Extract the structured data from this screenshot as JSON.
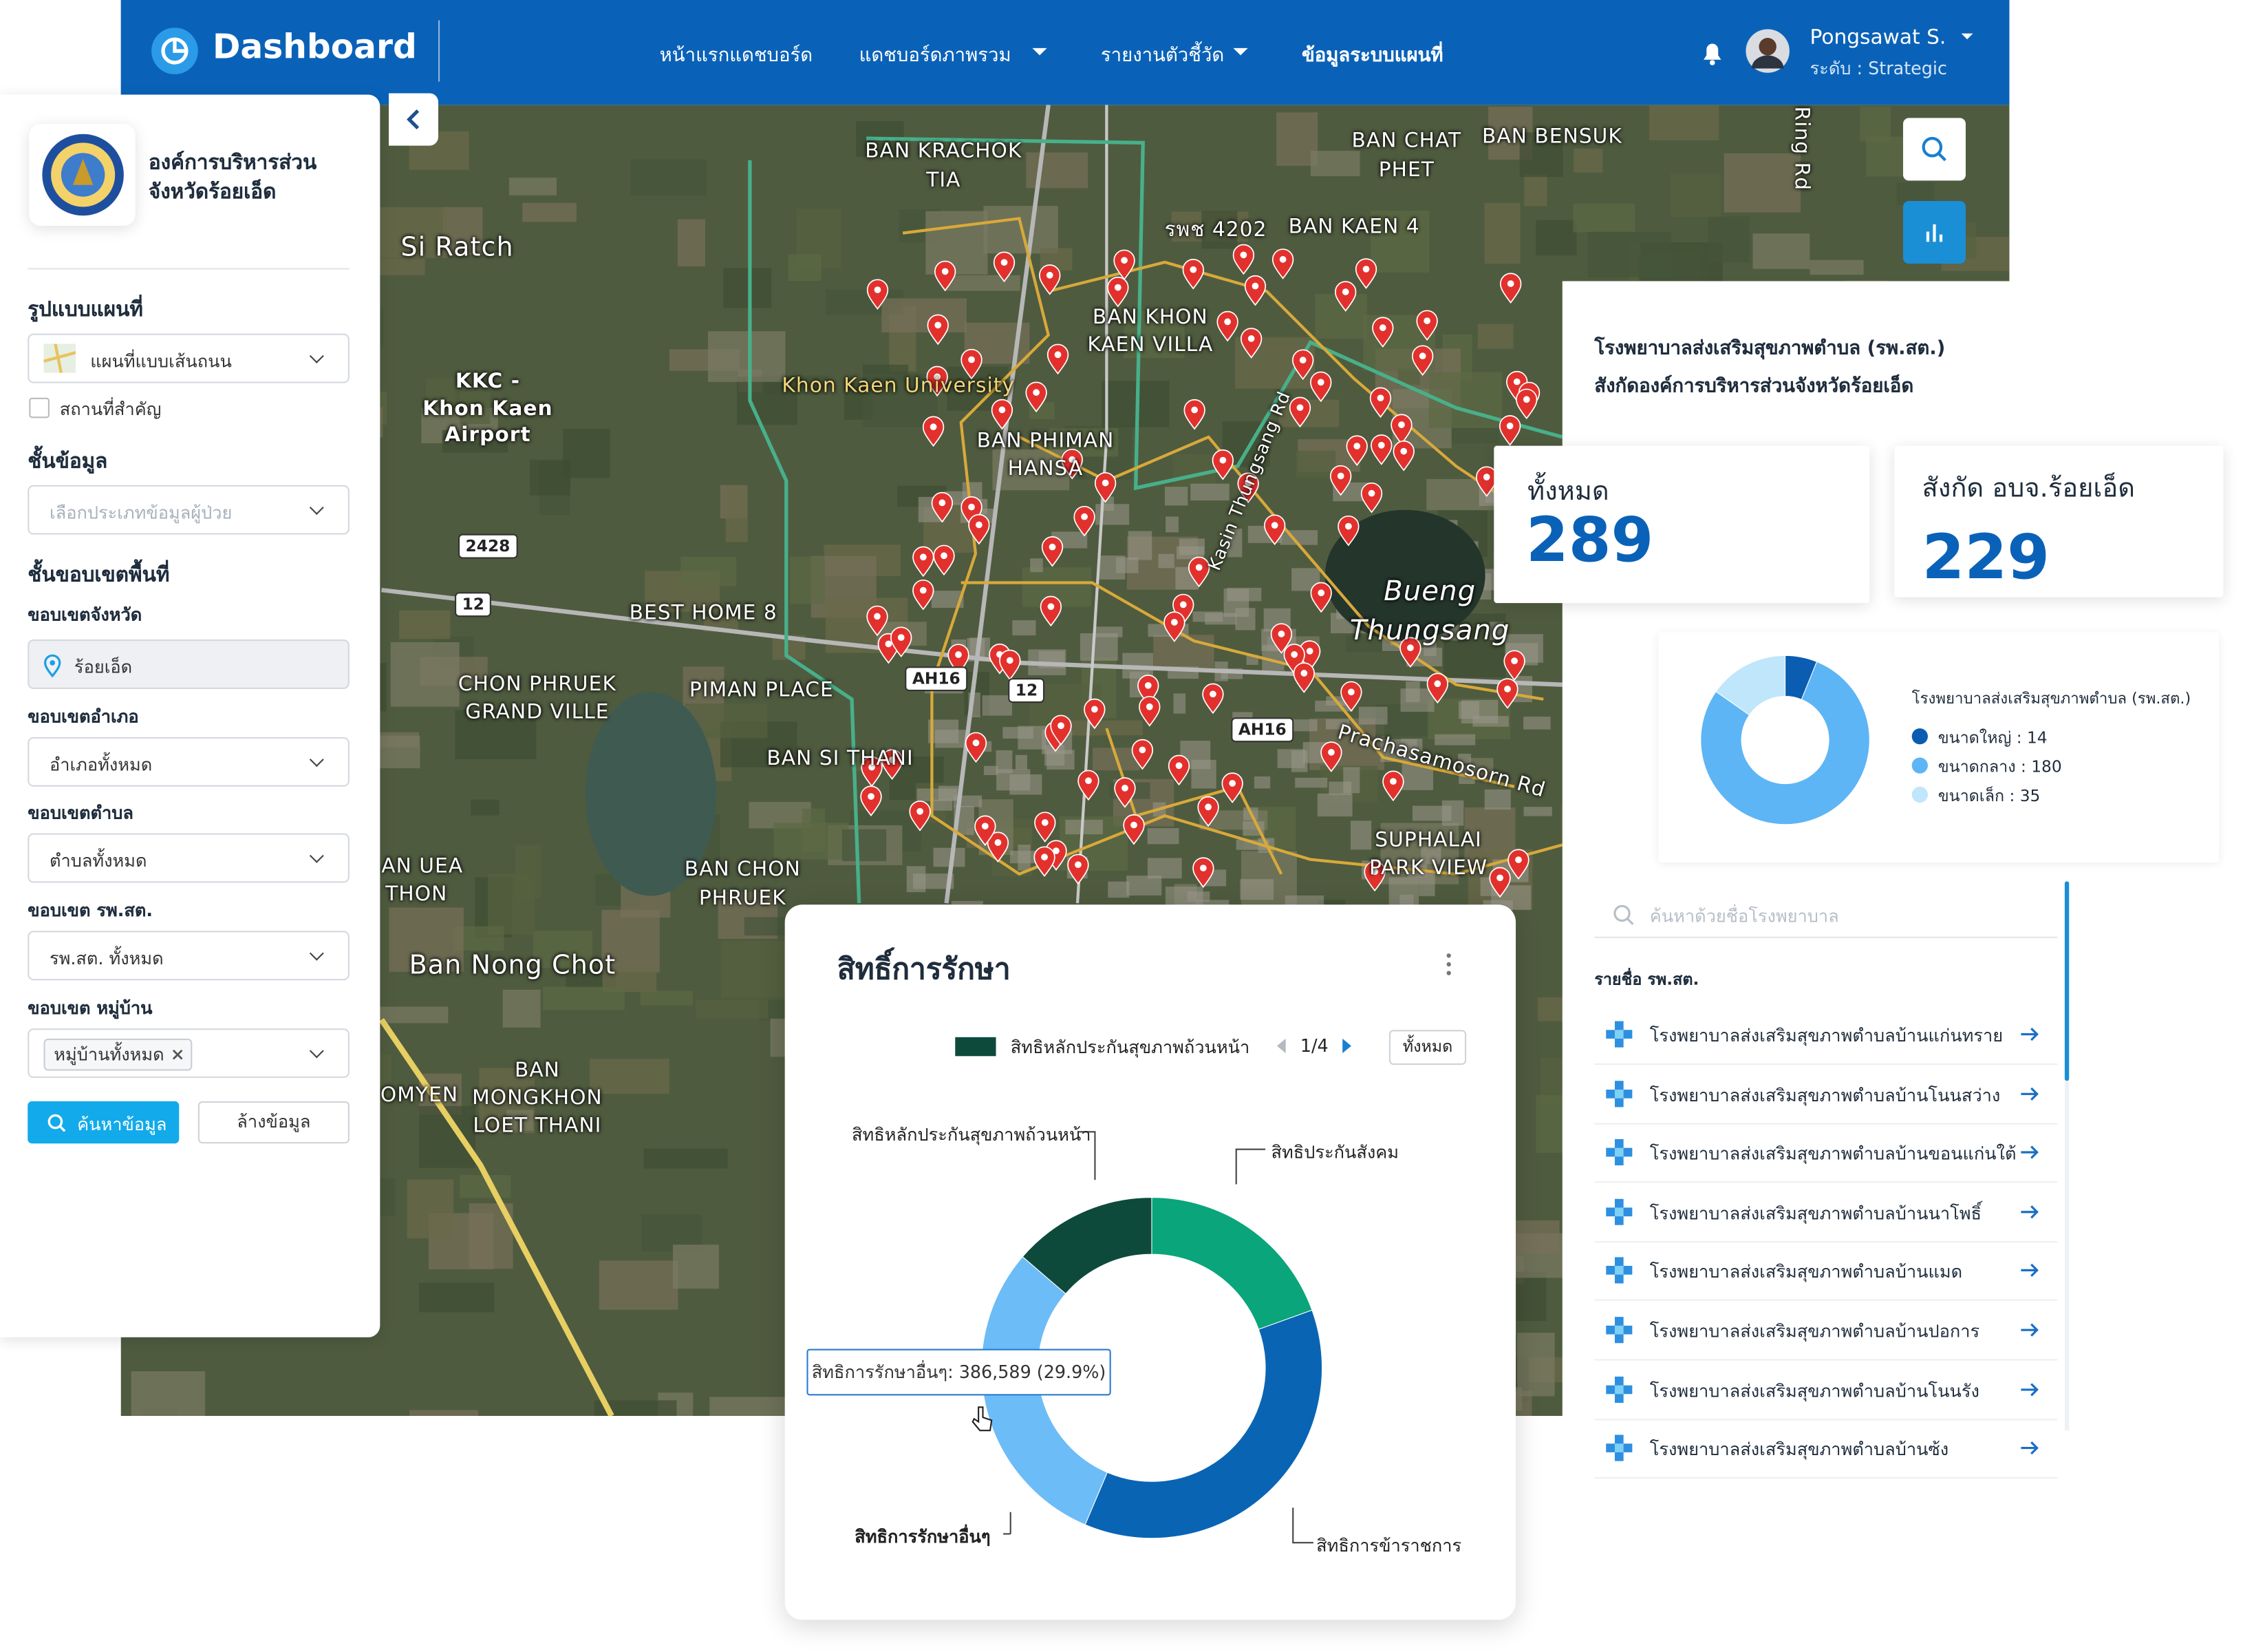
{
  "nav": {
    "brand": "Dashboard",
    "menu": [
      "หน้าแรกแดชบอร์ด",
      "แดชบอร์ดภาพรวม",
      "รายงานตัวชี้วัด",
      "ข้อมูลระบบแผนที่"
    ],
    "user": {
      "name": "Pongsawat S.",
      "role": "ระดับ : Strategic"
    }
  },
  "sidebar": {
    "org": [
      "องค์การบริหารส่วน",
      "จังหวัดร้อยเอ็ด"
    ],
    "map_style_label": "รูปแบบแผนที่",
    "map_style": "แผนที่แบบเส้นถนน",
    "landmarks": "สถานที่สำคัญ",
    "layer_label": "ชั้นข้อมูล",
    "layer_placeholder": "เลือกประเภทข้อมูลผู้ป่วย",
    "area_label": "ชั้นขอบเขตพื้นที่",
    "filters": [
      {
        "label": "ขอบเขตจังหวัด",
        "value": "ร้อยเอ็ด"
      },
      {
        "label": "ขอบเขตอำเภอ",
        "value": "อำเภอทั้งหมด"
      },
      {
        "label": "ขอบเขตตำบล",
        "value": "ตำบลทั้งหมด"
      },
      {
        "label": "ขอบเขต รพ.สต.",
        "value": "รพ.สต. ทั้งหมด"
      },
      {
        "label": "ขอบเขต หมู่บ้าน",
        "value": "หมู่บ้านทั้งหมด"
      }
    ],
    "search": "ค้นหาข้อมูล",
    "clear": "ล้างข้อมูล"
  },
  "map": {
    "labels": [
      "BAN KRACHOK",
      "TIA",
      "BAN CHAT",
      "PHET",
      "BAN BENSUK",
      "รพช 4202",
      "BAN KAEN 4",
      "Si Ratch",
      "KKC -",
      "Khon Kaen",
      "Airport",
      "Khon Kaen University",
      "BAN KHON",
      "KAEN VILLA",
      "BAN PHIMAN",
      "HANSA",
      "Kasin Thungsang Rd",
      "Bueng",
      "Thungsang",
      "BEST HOME 8",
      "CHON PHRUEK",
      "GRAND VILLE",
      "PIMAN PLACE",
      "BAN SI THANI",
      "Prachasamosorn Rd",
      "SUPHALAI",
      "PARK VIEW",
      "AN UEA",
      "THON",
      "BAN CHON",
      "PHRUEK",
      "Ban Nong Chot",
      "BAN",
      "MONGKHON",
      "LOET THANI",
      "OMYEN",
      "Ring Rd",
      "2428",
      "12",
      "AH16",
      "12",
      "AH16"
    ]
  },
  "panel": {
    "title": [
      "โรงพยาบาลส่งเสริมสุขภาพตำบล (รพ.สต.)",
      "สังกัดองค์การบริหารส่วนจังหวัดร้อยเอ็ด"
    ],
    "stats": [
      {
        "label": "ทั้งหมด",
        "value": 289
      },
      {
        "label": "สังกัด อบจ.ร้อยเอ็ด",
        "value": 229
      }
    ],
    "search_placeholder": "ค้นหาด้วยชื่อโรงพยาบาล",
    "list_title": "รายชื่อ รพ.สต.",
    "hospitals": [
      "โรงพยาบาลส่งเสริมสุขภาพตำบลบ้านแก่นทราย",
      "โรงพยาบาลส่งเสริมสุขภาพตำบลบ้านโนนสว่าง",
      "โรงพยาบาลส่งเสริมสุขภาพตำบลบ้านขอนแก่นใต้",
      "โรงพยาบาลส่งเสริมสุขภาพตำบลบ้านนาโพธิ์",
      "โรงพยาบาลส่งเสริมสุขภาพตำบลบ้านแมด",
      "โรงพยาบาลส่งเสริมสุขภาพตำบลบ้านปอการ",
      "โรงพยาบาลส่งเสริมสุขภาพตำบลบ้านโนนรัง",
      "โรงพยาบาลส่งเสริมสุขภาพตำบลบ้านซ้ง"
    ]
  },
  "chart_data": [
    {
      "type": "donut",
      "title": "โรงพยาบาลส่งเสริมสุขภาพตำบล (รพ.สต.)",
      "categories": [
        "ขนาดใหญ่ : 14",
        "ขนาดกลาง : 180",
        "ขนาดเล็ก : 35"
      ],
      "values": [
        14,
        180,
        35
      ],
      "colors": [
        "#0a5db0",
        "#5db5f5",
        "#bfe6fb"
      ]
    },
    {
      "type": "donut",
      "title": "สิทธิ์การรักษา",
      "categories": [
        "สิทธิหลักประกันสุขภาพถ้วนหน้า",
        "สิทธิประกันสังคม",
        "สิทธิการข้าราชการ",
        "สิทธิการรักษาอื่นๆ"
      ],
      "values": [
        13.7,
        19.5,
        36.9,
        29.9
      ],
      "colors": [
        "#0d4a3c",
        "#0aa57a",
        "#0a64b4",
        "#6cbcf7"
      ],
      "page": "1/4",
      "all_button": "ทั้งหมด",
      "tooltip": "สิทธิการรักษาอื่นๆ: 386,589 (29.9%)"
    }
  ]
}
